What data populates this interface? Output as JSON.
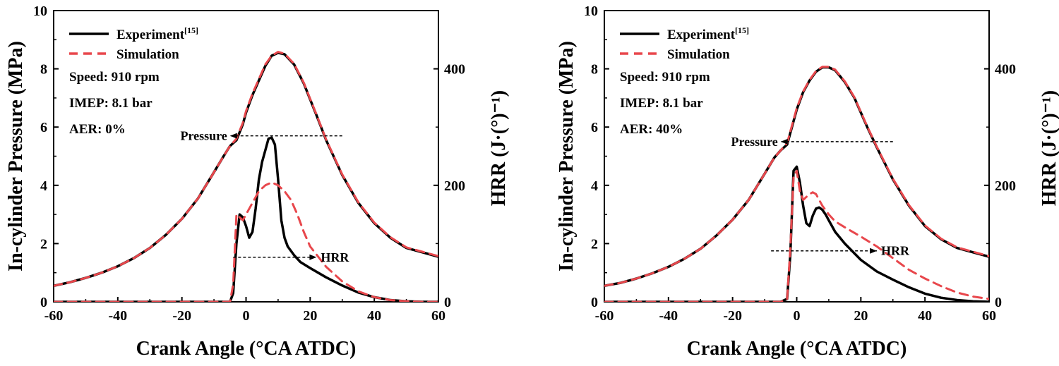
{
  "chart_data": [
    {
      "type": "line",
      "xlabel": "Crank Angle (°CA ATDC)",
      "ylabel": "In-cylinder Pressure (MPa)",
      "y2label": "HRR (J·(°)⁻¹)",
      "xlim": [
        -60,
        60
      ],
      "ylim": [
        0,
        10
      ],
      "y2lim": [
        0,
        500
      ],
      "xticks": [
        "-60",
        "-40",
        "-20",
        "0",
        "20",
        "40",
        "60"
      ],
      "yticks": [
        "0",
        "2",
        "4",
        "6",
        "8",
        "10"
      ],
      "y2ticks": [
        "0",
        "200",
        "400"
      ],
      "legend": {
        "position": "top-left",
        "entries": [
          {
            "label": "Experiment",
            "sup": "[15]",
            "style": "solid",
            "color": "#000000"
          },
          {
            "label": "Simulation",
            "sup": "",
            "style": "dashed",
            "color": "#e8474c"
          }
        ]
      },
      "info": [
        "Speed: 910 rpm",
        "IMEP: 8.1 bar",
        "AER: 0%"
      ],
      "annotations": [
        {
          "text": "Pressure",
          "arrow": "left",
          "axis": "y",
          "y": 5.7,
          "x_from": 30,
          "x_to": -5
        },
        {
          "text": "HRR",
          "arrow": "right",
          "axis": "y",
          "y": 1.53,
          "x_from": -4,
          "x_to": 22
        }
      ],
      "series": [
        {
          "name": "Experiment",
          "axis": "y",
          "color": "#000000",
          "dashed": false,
          "x": [
            -60,
            -55,
            -50,
            -45,
            -40,
            -35,
            -30,
            -25,
            -20,
            -15,
            -10,
            -7,
            -5,
            -3,
            -1,
            0,
            2,
            4,
            6,
            8,
            10,
            12,
            15,
            18,
            20,
            22,
            25,
            30,
            35,
            40,
            45,
            50,
            55,
            60
          ],
          "y": [
            0.55,
            0.67,
            0.82,
            1.0,
            1.22,
            1.5,
            1.85,
            2.3,
            2.85,
            3.55,
            4.45,
            5.0,
            5.35,
            5.55,
            6.1,
            6.5,
            7.1,
            7.6,
            8.1,
            8.45,
            8.55,
            8.5,
            8.15,
            7.5,
            6.95,
            6.4,
            5.55,
            4.35,
            3.4,
            2.7,
            2.2,
            1.85,
            1.7,
            1.55
          ]
        },
        {
          "name": "Simulation",
          "axis": "y",
          "color": "#e8474c",
          "dashed": true,
          "x": [
            -60,
            -55,
            -50,
            -45,
            -40,
            -35,
            -30,
            -25,
            -20,
            -15,
            -10,
            -7,
            -5,
            -3,
            -1,
            0,
            2,
            4,
            6,
            8,
            10,
            12,
            15,
            18,
            20,
            22,
            25,
            30,
            35,
            40,
            45,
            50,
            55,
            60
          ],
          "y": [
            0.55,
            0.67,
            0.82,
            1.0,
            1.22,
            1.5,
            1.85,
            2.3,
            2.85,
            3.55,
            4.45,
            5.0,
            5.35,
            5.6,
            6.15,
            6.55,
            7.15,
            7.65,
            8.15,
            8.45,
            8.58,
            8.52,
            8.17,
            7.52,
            6.97,
            6.42,
            5.57,
            4.37,
            3.42,
            2.72,
            2.22,
            1.87,
            1.72,
            1.57
          ]
        },
        {
          "name": "Experiment",
          "axis": "y2",
          "color": "#000000",
          "dashed": false,
          "x": [
            -60,
            -10,
            -5,
            -4,
            -3,
            -2,
            -1,
            0,
            1,
            2,
            3,
            4,
            5,
            6,
            7,
            8,
            9,
            10,
            11,
            12,
            13,
            15,
            17,
            20,
            25,
            30,
            35,
            40,
            45,
            50,
            55,
            60
          ],
          "y": [
            0,
            0,
            0,
            15,
            100,
            150,
            145,
            130,
            110,
            120,
            160,
            210,
            240,
            260,
            280,
            282,
            270,
            210,
            140,
            110,
            95,
            80,
            68,
            58,
            42,
            28,
            16,
            8,
            3,
            1,
            0,
            0
          ]
        },
        {
          "name": "Simulation",
          "axis": "y2",
          "color": "#e8474c",
          "dashed": true,
          "x": [
            -60,
            -10,
            -5,
            -4,
            -3,
            -2,
            -1,
            0,
            2,
            4,
            6,
            8,
            10,
            12,
            14,
            16,
            18,
            20,
            25,
            30,
            35,
            40,
            45,
            50,
            55,
            60
          ],
          "y": [
            0,
            0,
            0,
            30,
            150,
            145,
            140,
            150,
            170,
            190,
            200,
            205,
            200,
            190,
            175,
            150,
            120,
            95,
            60,
            35,
            18,
            8,
            3,
            1,
            0,
            0
          ]
        }
      ]
    },
    {
      "type": "line",
      "xlabel": "Crank Angle (°CA ATDC)",
      "ylabel": "In-cylinder Pressure (MPa)",
      "y2label": "HRR (J·(°)⁻¹)",
      "xlim": [
        -60,
        60
      ],
      "ylim": [
        0,
        10
      ],
      "y2lim": [
        0,
        500
      ],
      "xticks": [
        "-60",
        "-40",
        "-20",
        "0",
        "20",
        "40",
        "60"
      ],
      "yticks": [
        "0",
        "2",
        "4",
        "6",
        "8",
        "10"
      ],
      "y2ticks": [
        "0",
        "200",
        "400"
      ],
      "legend": {
        "position": "top-left",
        "entries": [
          {
            "label": "Experiment",
            "sup": "[15]",
            "style": "solid",
            "color": "#000000"
          },
          {
            "label": "Simulation",
            "sup": "",
            "style": "dashed",
            "color": "#e8474c"
          }
        ]
      },
      "info": [
        "Speed: 910 rpm",
        "IMEP: 8.1 bar",
        "AER: 40%"
      ],
      "annotations": [
        {
          "text": "Pressure",
          "arrow": "left",
          "axis": "y",
          "y": 5.5,
          "x_from": 30,
          "x_to": -5
        },
        {
          "text": "HRR",
          "arrow": "right",
          "axis": "y",
          "y": 1.75,
          "x_from": -8,
          "x_to": 25
        }
      ],
      "series": [
        {
          "name": "Experiment",
          "axis": "y",
          "color": "#000000",
          "dashed": false,
          "x": [
            -60,
            -55,
            -50,
            -45,
            -40,
            -35,
            -30,
            -25,
            -20,
            -15,
            -10,
            -7,
            -5,
            -3,
            -1,
            0,
            2,
            4,
            6,
            8,
            10,
            12,
            15,
            18,
            20,
            22,
            25,
            30,
            35,
            40,
            45,
            50,
            55,
            60
          ],
          "y": [
            0.55,
            0.65,
            0.8,
            0.98,
            1.2,
            1.48,
            1.82,
            2.28,
            2.82,
            3.5,
            4.4,
            4.95,
            5.2,
            5.4,
            6.2,
            6.6,
            7.2,
            7.6,
            7.9,
            8.05,
            8.05,
            7.95,
            7.55,
            7.0,
            6.5,
            6.0,
            5.3,
            4.2,
            3.3,
            2.6,
            2.15,
            1.85,
            1.7,
            1.55
          ]
        },
        {
          "name": "Simulation",
          "axis": "y",
          "color": "#e8474c",
          "dashed": true,
          "x": [
            -60,
            -55,
            -50,
            -45,
            -40,
            -35,
            -30,
            -25,
            -20,
            -15,
            -10,
            -7,
            -5,
            -3,
            -1,
            0,
            2,
            4,
            6,
            8,
            10,
            12,
            15,
            18,
            20,
            22,
            25,
            30,
            35,
            40,
            45,
            50,
            55,
            60
          ],
          "y": [
            0.55,
            0.65,
            0.8,
            0.98,
            1.2,
            1.48,
            1.82,
            2.28,
            2.82,
            3.5,
            4.4,
            4.95,
            5.2,
            5.45,
            6.25,
            6.65,
            7.22,
            7.62,
            7.92,
            8.07,
            8.07,
            7.97,
            7.57,
            7.02,
            6.52,
            6.02,
            5.32,
            4.22,
            3.32,
            2.62,
            2.17,
            1.87,
            1.72,
            1.57
          ]
        },
        {
          "name": "Experiment",
          "axis": "y2",
          "color": "#000000",
          "dashed": false,
          "x": [
            -60,
            -5,
            -3,
            -2,
            -1,
            0,
            1,
            2,
            3,
            4,
            5,
            6,
            7,
            8,
            9,
            10,
            12,
            15,
            20,
            25,
            30,
            35,
            40,
            45,
            50,
            55,
            60
          ],
          "y": [
            0,
            0,
            5,
            80,
            225,
            232,
            205,
            165,
            135,
            130,
            148,
            160,
            162,
            158,
            150,
            140,
            120,
            100,
            72,
            52,
            38,
            25,
            14,
            7,
            3,
            1,
            0
          ]
        },
        {
          "name": "Simulation",
          "axis": "y2",
          "color": "#e8474c",
          "dashed": true,
          "x": [
            -60,
            -5,
            -3,
            -2,
            -1,
            0,
            1,
            2,
            3,
            4,
            5,
            6,
            7,
            8,
            10,
            12,
            15,
            20,
            25,
            30,
            35,
            40,
            45,
            50,
            55,
            60
          ],
          "y": [
            0,
            0,
            5,
            90,
            215,
            225,
            190,
            175,
            180,
            185,
            188,
            185,
            175,
            165,
            150,
            138,
            128,
            112,
            95,
            75,
            55,
            40,
            27,
            16,
            9,
            5
          ]
        }
      ]
    }
  ]
}
